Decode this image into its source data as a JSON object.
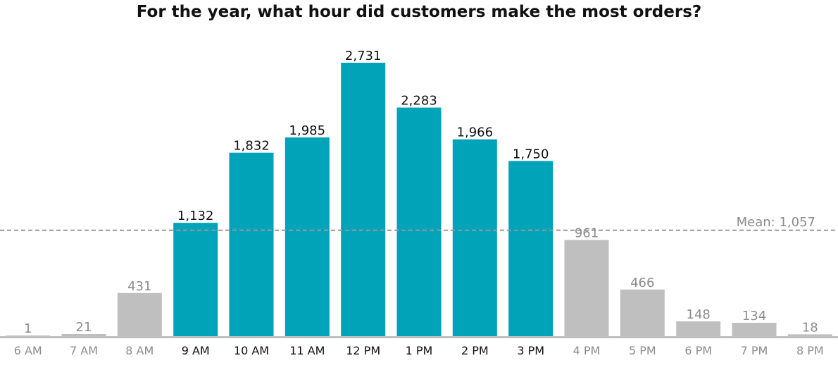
{
  "chart_data": {
    "type": "bar",
    "title": "For the year, what hour did customers make the most orders?",
    "xlabel": "",
    "ylabel": "",
    "categories": [
      "6 AM",
      "7 AM",
      "8 AM",
      "9 AM",
      "10 AM",
      "11 AM",
      "12 PM",
      "1 PM",
      "2 PM",
      "3 PM",
      "4 PM",
      "5 PM",
      "6 PM",
      "7 PM",
      "8 PM"
    ],
    "values": [
      1,
      21,
      431,
      1132,
      1832,
      1985,
      2731,
      2283,
      1966,
      1750,
      961,
      466,
      148,
      134,
      18
    ],
    "value_labels": [
      "1",
      "21",
      "431",
      "1,132",
      "1,832",
      "1,985",
      "2,731",
      "2,283",
      "1,966",
      "1,750",
      "961",
      "466",
      "148",
      "134",
      "18"
    ],
    "highlighted": [
      false,
      false,
      false,
      true,
      true,
      true,
      true,
      true,
      true,
      true,
      false,
      false,
      false,
      false,
      false
    ],
    "mean": 1057,
    "mean_label": "Mean: 1,057",
    "grid": false,
    "legend": "none",
    "colors": {
      "highlight": "#00a3b7",
      "muted": "#bfbfbf",
      "mean_line": "#999999",
      "highlight_text": "#111111",
      "muted_text": "#8c8c8c",
      "baseline": "#bfbfbf"
    }
  }
}
